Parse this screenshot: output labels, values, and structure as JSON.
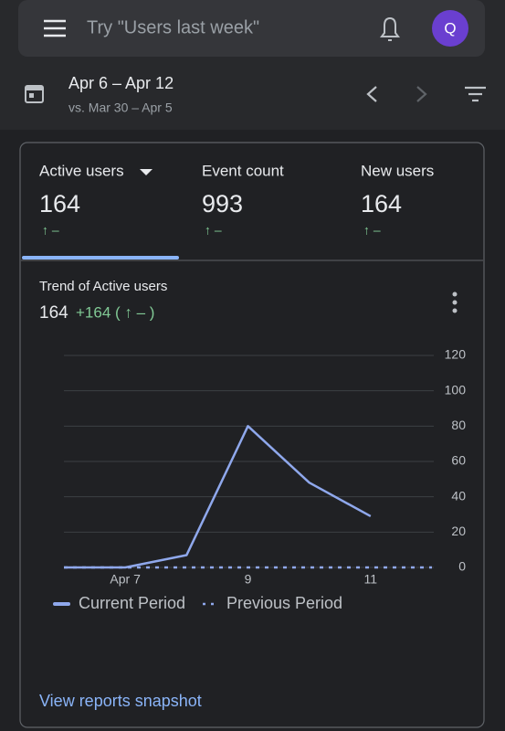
{
  "search": {
    "placeholder": "Try \"Users last week\"",
    "avatar": "Q"
  },
  "date_range": {
    "current": "Apr 6 – Apr 12",
    "comparison": "vs. Mar 30 – Apr 5"
  },
  "metrics": [
    {
      "label": "Active users",
      "value": "164",
      "change": "↑ –"
    },
    {
      "label": "Event count",
      "value": "993",
      "change": "↑ –"
    },
    {
      "label": "New users",
      "value": "164",
      "change": "↑ –"
    }
  ],
  "chart_data": {
    "type": "line",
    "title": "Trend of Active users",
    "summary_value": "164",
    "summary_change": "+164 ( ↑ – )",
    "categories": [
      null,
      "Apr 7",
      null,
      "9",
      null,
      "11",
      null
    ],
    "series": [
      {
        "name": "Current Period",
        "color": "#8fa8ec",
        "style": "solid",
        "values": [
          0,
          0,
          7,
          80,
          48,
          29,
          null
        ]
      },
      {
        "name": "Previous Period",
        "color": "#8fa8ec",
        "style": "dashed",
        "values": [
          0,
          0,
          0,
          0,
          0,
          0,
          0
        ]
      }
    ],
    "ylim": [
      0,
      120
    ],
    "yticks": [
      0,
      20,
      40,
      60,
      80,
      100,
      120
    ],
    "grid": true,
    "y_axis_side": "right"
  },
  "footer_link": "View reports snapshot"
}
